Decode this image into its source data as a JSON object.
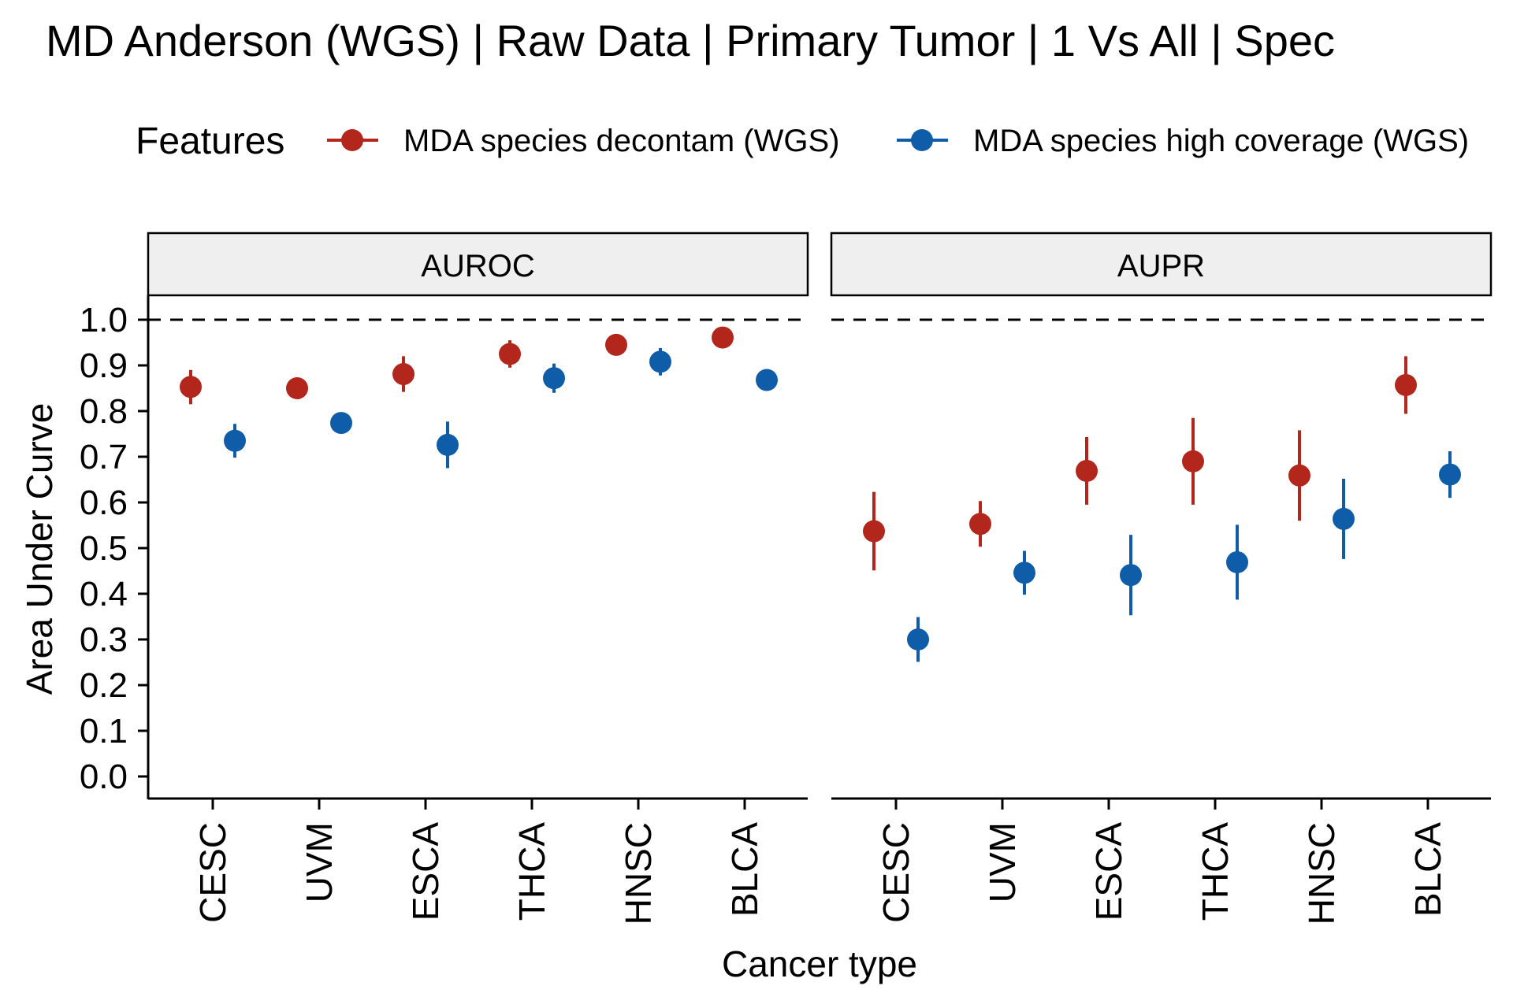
{
  "chart_data": {
    "type": "scatter",
    "title": "MD Anderson (WGS) | Raw Data | Primary Tumor | 1 Vs All | Spec",
    "xlabel": "Cancer type",
    "ylabel": "Area Under Curve",
    "ylim": [
      0,
      1
    ],
    "yticks": [
      "0.0",
      "0.1",
      "0.2",
      "0.3",
      "0.4",
      "0.5",
      "0.6",
      "0.7",
      "0.8",
      "0.9",
      "1.0"
    ],
    "reference_line": 1.0,
    "legend": {
      "title": "Features",
      "placement": "top",
      "items": [
        "MDA species decontam (WGS)",
        "MDA species high coverage (WGS)"
      ]
    },
    "colors": {
      "decontam": "#b2261c",
      "high_coverage": "#0f5ca8"
    },
    "categories": [
      "CESC",
      "UVM",
      "ESCA",
      "THCA",
      "HNSC",
      "BLCA"
    ],
    "panels": [
      {
        "name": "AUROC",
        "series": [
          {
            "name": "MDA species decontam (WGS)",
            "color_key": "decontam",
            "values": [
              0.853,
              0.85,
              0.881,
              0.925,
              0.945,
              0.961
            ],
            "lower": [
              0.815,
              0.843,
              0.842,
              0.895,
              0.937,
              0.953
            ],
            "upper": [
              0.89,
              0.857,
              0.92,
              0.955,
              0.953,
              0.969
            ]
          },
          {
            "name": "MDA species high coverage (WGS)",
            "color_key": "high_coverage",
            "values": [
              0.735,
              0.774,
              0.726,
              0.872,
              0.908,
              0.868
            ],
            "lower": [
              0.698,
              0.764,
              0.675,
              0.84,
              0.878,
              0.851
            ],
            "upper": [
              0.772,
              0.784,
              0.777,
              0.904,
              0.938,
              0.885
            ]
          }
        ]
      },
      {
        "name": "AUPR",
        "series": [
          {
            "name": "MDA species decontam (WGS)",
            "color_key": "decontam",
            "values": [
              0.537,
              0.553,
              0.669,
              0.69,
              0.659,
              0.857
            ],
            "lower": [
              0.451,
              0.503,
              0.595,
              0.595,
              0.56,
              0.794
            ],
            "upper": [
              0.623,
              0.603,
              0.743,
              0.785,
              0.758,
              0.92
            ]
          },
          {
            "name": "MDA species high coverage (WGS)",
            "color_key": "high_coverage",
            "values": [
              0.3,
              0.446,
              0.441,
              0.469,
              0.564,
              0.661
            ],
            "lower": [
              0.251,
              0.398,
              0.353,
              0.387,
              0.476,
              0.61
            ],
            "upper": [
              0.349,
              0.494,
              0.529,
              0.551,
              0.652,
              0.712
            ]
          }
        ]
      }
    ]
  }
}
